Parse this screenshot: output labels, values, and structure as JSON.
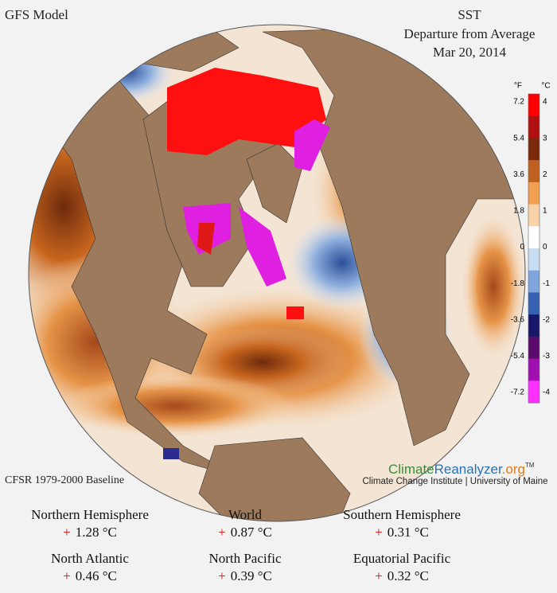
{
  "header": {
    "model": "GFS Model",
    "title": "SST",
    "subtitle": "Departure from Average",
    "date": "Mar 20, 2014"
  },
  "colorbar": {
    "unit_f": "°F",
    "unit_c": "°C",
    "fahrenheit": [
      "7.2",
      "5.4",
      "3.6",
      "1.8",
      "0",
      "-1.8",
      "-3.6",
      "-5.4",
      "-7.2"
    ],
    "celsius": [
      "4",
      "3",
      "2",
      "1",
      "0",
      "-1",
      "-2",
      "-3",
      "-4"
    ]
  },
  "footer": {
    "baseline": "CFSR 1979-2000 Baseline",
    "logo_climate": "Climate",
    "logo_reanalyzer": "Reanalyzer",
    "logo_org": ".org",
    "logo_tm": "TM",
    "institute": "Climate Change Institute | University of Maine"
  },
  "stats": [
    {
      "name": "Northern Hemisphere",
      "sign": "+",
      "value": "1.28 °C"
    },
    {
      "name": "World",
      "sign": "+",
      "value": "0.87 °C"
    },
    {
      "name": "Southern Hemisphere",
      "sign": "+",
      "value": "0.31 °C"
    },
    {
      "name": "North Atlantic",
      "sign": "+",
      "value": "0.46 °C"
    },
    {
      "name": "North Pacific",
      "sign": "+",
      "value": "0.39 °C"
    },
    {
      "name": "Equatorial Pacific",
      "sign": "+",
      "value": "0.32 °C"
    }
  ]
}
